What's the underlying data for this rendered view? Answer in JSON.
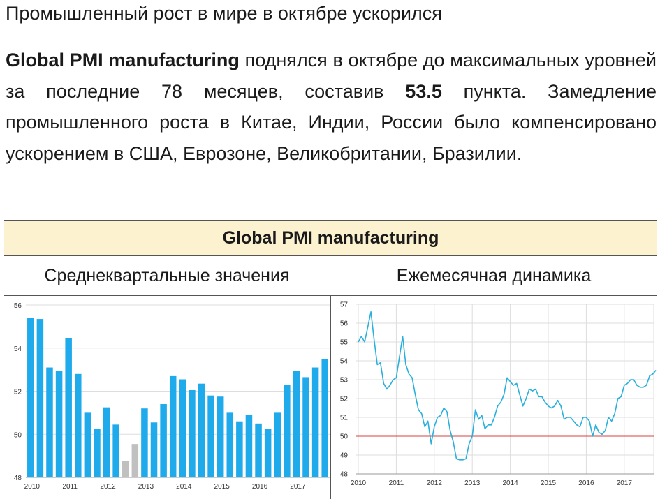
{
  "page": {
    "title": "Промышленный рост в мире в октябре ускорился",
    "para": {
      "b1": "Global PMI manufacturing",
      "t1": " поднялся в октябре до максимальных уровней за последние 78 месяцев, составив ",
      "b2": "53.5",
      "t2": " пункта.  Замедление промышленного роста в Китае, Индии, России было компенсировано ускорением в США, Еврозоне, Великобритании, Бразилии."
    }
  },
  "table": {
    "header": "Global PMI manufacturing",
    "left_title": "Среднеквартальные значения",
    "right_title": "Ежемесячная динамика"
  },
  "chart_data": [
    {
      "type": "bar",
      "title": "Среднеквартальные значения",
      "ylim": [
        48,
        56
      ],
      "yticks": [
        "48",
        "50",
        "52",
        "54",
        "56"
      ],
      "year_labels": [
        "2010",
        "2011",
        "2012",
        "2013",
        "2014",
        "2015",
        "2016",
        "2017"
      ],
      "grid": "horizontal",
      "colors": {
        "bar": "#1eaaeb",
        "highlight": "#c0c0c0"
      },
      "categories": [
        "2010Q1",
        "2010Q2",
        "2010Q3",
        "2010Q4",
        "2011Q1",
        "2011Q2",
        "2011Q3",
        "2011Q4",
        "2012Q1",
        "2012Q2",
        "2012Q3",
        "2012Q4",
        "2013Q1",
        "2013Q2",
        "2013Q3",
        "2013Q4",
        "2014Q1",
        "2014Q2",
        "2014Q3",
        "2014Q4",
        "2015Q1",
        "2015Q2",
        "2015Q3",
        "2015Q4",
        "2016Q1",
        "2016Q2",
        "2016Q3",
        "2016Q4",
        "2017Q1",
        "2017Q2",
        "2017Q3",
        "2017Q4"
      ],
      "values": [
        55.4,
        55.35,
        53.1,
        52.95,
        54.45,
        52.8,
        51.0,
        50.25,
        51.25,
        50.45,
        48.75,
        49.55,
        51.2,
        50.55,
        51.4,
        52.7,
        52.55,
        52.05,
        52.35,
        51.8,
        51.75,
        51.0,
        50.6,
        50.9,
        50.5,
        50.25,
        51.0,
        52.3,
        52.95,
        52.65,
        53.1,
        53.5
      ],
      "highlight_indices": [
        10,
        11
      ]
    },
    {
      "type": "line",
      "title": "Ежемесячная динамика",
      "ylim": [
        48,
        57
      ],
      "yticks": [
        "48",
        "49",
        "50",
        "51",
        "52",
        "53",
        "54",
        "55",
        "56",
        "57"
      ],
      "year_labels": [
        "2010",
        "2011",
        "2012",
        "2013",
        "2014",
        "2015",
        "2016",
        "2017"
      ],
      "grid": "both",
      "reference_line": 50,
      "colors": {
        "line": "#2ab0dc",
        "reference": "#d94040"
      },
      "x_start_year": 2010,
      "values": [
        55.0,
        55.3,
        55.0,
        55.8,
        56.6,
        55.1,
        53.8,
        53.9,
        52.8,
        52.5,
        52.7,
        53.0,
        53.1,
        54.2,
        55.3,
        53.8,
        53.3,
        53.1,
        52.2,
        51.4,
        51.2,
        50.5,
        50.8,
        49.6,
        50.5,
        51.0,
        51.1,
        51.5,
        51.3,
        50.3,
        49.7,
        48.8,
        48.75,
        48.75,
        48.8,
        49.6,
        50.0,
        51.4,
        50.9,
        51.1,
        50.4,
        50.6,
        50.6,
        51.0,
        51.6,
        51.8,
        52.2,
        53.1,
        52.9,
        52.7,
        52.8,
        52.2,
        51.6,
        52.0,
        52.5,
        52.4,
        52.5,
        52.1,
        52.1,
        51.8,
        51.6,
        51.5,
        51.6,
        51.9,
        51.6,
        50.9,
        51.0,
        51.0,
        50.8,
        50.6,
        50.5,
        51.0,
        51.0,
        50.8,
        50.0,
        50.6,
        50.2,
        50.1,
        50.3,
        51.0,
        50.8,
        51.2,
        52.0,
        52.1,
        52.7,
        52.8,
        53.0,
        53.0,
        52.7,
        52.6,
        52.6,
        52.7,
        53.2,
        53.3,
        53.5
      ]
    }
  ]
}
